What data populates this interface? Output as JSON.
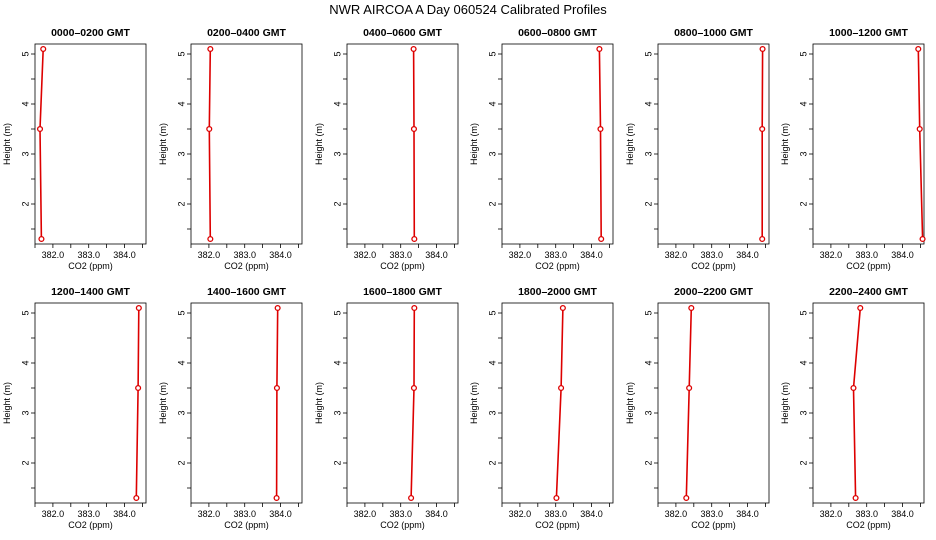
{
  "figure": {
    "title": "NWR AIRCOA A  Day 060524  Calibrated Profiles"
  },
  "colors": {
    "profile": "#dd0000",
    "axis": "#000000",
    "background": "#ffffff"
  },
  "chart_data": [
    {
      "type": "line",
      "title": "0000–0200 GMT",
      "xlabel": "CO2 (ppm)",
      "ylabel": "Height (m)",
      "xlim": [
        381.5,
        384.6
      ],
      "ylim": [
        1.2,
        5.2
      ],
      "xticks": [
        382.0,
        383.0,
        384.0
      ],
      "xtick_labels": [
        "382.0",
        "383.0",
        "384.0"
      ],
      "yticks": [
        2,
        3,
        4,
        5
      ],
      "ytick_labels": [
        "2",
        "3",
        "4",
        "5"
      ],
      "series": [
        {
          "x": [
            381.68,
            381.64,
            381.73
          ],
          "y": [
            1.3,
            3.5,
            5.1
          ]
        }
      ]
    },
    {
      "type": "line",
      "title": "0200–0400 GMT",
      "xlabel": "CO2 (ppm)",
      "ylabel": "Height (m)",
      "xlim": [
        381.5,
        384.6
      ],
      "ylim": [
        1.2,
        5.2
      ],
      "xticks": [
        382.0,
        383.0,
        384.0
      ],
      "xtick_labels": [
        "382.0",
        "383.0",
        "384.0"
      ],
      "yticks": [
        2,
        3,
        4,
        5
      ],
      "ytick_labels": [
        "2",
        "3",
        "4",
        "5"
      ],
      "series": [
        {
          "x": [
            382.04,
            382.01,
            382.04
          ],
          "y": [
            1.3,
            3.5,
            5.1
          ]
        }
      ]
    },
    {
      "type": "line",
      "title": "0400–0600 GMT",
      "xlabel": "CO2 (ppm)",
      "ylabel": "Height (m)",
      "xlim": [
        381.5,
        384.6
      ],
      "ylim": [
        1.2,
        5.2
      ],
      "xticks": [
        382.0,
        383.0,
        384.0
      ],
      "xtick_labels": [
        "382.0",
        "383.0",
        "384.0"
      ],
      "yticks": [
        2,
        3,
        4,
        5
      ],
      "ytick_labels": [
        "2",
        "3",
        "4",
        "5"
      ],
      "series": [
        {
          "x": [
            383.38,
            383.37,
            383.36
          ],
          "y": [
            1.3,
            3.5,
            5.1
          ]
        }
      ]
    },
    {
      "type": "line",
      "title": "0600–0800 GMT",
      "xlabel": "CO2 (ppm)",
      "ylabel": "Height (m)",
      "xlim": [
        381.5,
        384.6
      ],
      "ylim": [
        1.2,
        5.2
      ],
      "xticks": [
        382.0,
        383.0,
        384.0
      ],
      "xtick_labels": [
        "382.0",
        "383.0",
        "384.0"
      ],
      "yticks": [
        2,
        3,
        4,
        5
      ],
      "ytick_labels": [
        "2",
        "3",
        "4",
        "5"
      ],
      "series": [
        {
          "x": [
            384.27,
            384.25,
            384.22
          ],
          "y": [
            1.3,
            3.5,
            5.1
          ]
        }
      ]
    },
    {
      "type": "line",
      "title": "0800–1000 GMT",
      "xlabel": "CO2 (ppm)",
      "ylabel": "Height (m)",
      "xlim": [
        381.5,
        384.6
      ],
      "ylim": [
        1.2,
        5.2
      ],
      "xticks": [
        382.0,
        383.0,
        384.0
      ],
      "xtick_labels": [
        "382.0",
        "383.0",
        "384.0"
      ],
      "yticks": [
        2,
        3,
        4,
        5
      ],
      "ytick_labels": [
        "2",
        "3",
        "4",
        "5"
      ],
      "series": [
        {
          "x": [
            384.41,
            384.41,
            384.42
          ],
          "y": [
            1.3,
            3.5,
            5.1
          ]
        }
      ]
    },
    {
      "type": "line",
      "title": "1000–1200 GMT",
      "xlabel": "CO2 (ppm)",
      "ylabel": "Height (m)",
      "xlim": [
        381.5,
        384.6
      ],
      "ylim": [
        1.2,
        5.2
      ],
      "xticks": [
        382.0,
        383.0,
        384.0
      ],
      "xtick_labels": [
        "382.0",
        "383.0",
        "384.0"
      ],
      "yticks": [
        2,
        3,
        4,
        5
      ],
      "ytick_labels": [
        "2",
        "3",
        "4",
        "5"
      ],
      "series": [
        {
          "x": [
            384.56,
            384.48,
            384.44
          ],
          "y": [
            1.3,
            3.5,
            5.1
          ]
        }
      ]
    },
    {
      "type": "line",
      "title": "1200–1400 GMT",
      "xlabel": "CO2 (ppm)",
      "ylabel": "Height (m)",
      "xlim": [
        381.5,
        384.6
      ],
      "ylim": [
        1.2,
        5.2
      ],
      "xticks": [
        382.0,
        383.0,
        384.0
      ],
      "xtick_labels": [
        "382.0",
        "383.0",
        "384.0"
      ],
      "yticks": [
        2,
        3,
        4,
        5
      ],
      "ytick_labels": [
        "2",
        "3",
        "4",
        "5"
      ],
      "series": [
        {
          "x": [
            384.33,
            384.38,
            384.4
          ],
          "y": [
            1.3,
            3.5,
            5.1
          ]
        }
      ]
    },
    {
      "type": "line",
      "title": "1400–1600 GMT",
      "xlabel": "CO2 (ppm)",
      "ylabel": "Height (m)",
      "xlim": [
        381.5,
        384.6
      ],
      "ylim": [
        1.2,
        5.2
      ],
      "xticks": [
        382.0,
        383.0,
        384.0
      ],
      "xtick_labels": [
        "382.0",
        "383.0",
        "384.0"
      ],
      "yticks": [
        2,
        3,
        4,
        5
      ],
      "ytick_labels": [
        "2",
        "3",
        "4",
        "5"
      ],
      "series": [
        {
          "x": [
            383.89,
            383.9,
            383.92
          ],
          "y": [
            1.3,
            3.5,
            5.1
          ]
        }
      ]
    },
    {
      "type": "line",
      "title": "1600–1800 GMT",
      "xlabel": "CO2 (ppm)",
      "ylabel": "Height (m)",
      "xlim": [
        381.5,
        384.6
      ],
      "ylim": [
        1.2,
        5.2
      ],
      "xticks": [
        382.0,
        383.0,
        384.0
      ],
      "xtick_labels": [
        "382.0",
        "383.0",
        "384.0"
      ],
      "yticks": [
        2,
        3,
        4,
        5
      ],
      "ytick_labels": [
        "2",
        "3",
        "4",
        "5"
      ],
      "series": [
        {
          "x": [
            383.29,
            383.37,
            383.38
          ],
          "y": [
            1.3,
            3.5,
            5.1
          ]
        }
      ]
    },
    {
      "type": "line",
      "title": "1800–2000 GMT",
      "xlabel": "CO2 (ppm)",
      "ylabel": "Height (m)",
      "xlim": [
        381.5,
        384.6
      ],
      "ylim": [
        1.2,
        5.2
      ],
      "xticks": [
        382.0,
        383.0,
        384.0
      ],
      "xtick_labels": [
        "382.0",
        "383.0",
        "384.0"
      ],
      "yticks": [
        2,
        3,
        4,
        5
      ],
      "ytick_labels": [
        "2",
        "3",
        "4",
        "5"
      ],
      "series": [
        {
          "x": [
            383.02,
            383.15,
            383.2
          ],
          "y": [
            1.3,
            3.5,
            5.1
          ]
        }
      ]
    },
    {
      "type": "line",
      "title": "2000–2200 GMT",
      "xlabel": "CO2 (ppm)",
      "ylabel": "Height (m)",
      "xlim": [
        381.5,
        384.6
      ],
      "ylim": [
        1.2,
        5.2
      ],
      "xticks": [
        382.0,
        383.0,
        384.0
      ],
      "xtick_labels": [
        "382.0",
        "383.0",
        "384.0"
      ],
      "yticks": [
        2,
        3,
        4,
        5
      ],
      "ytick_labels": [
        "2",
        "3",
        "4",
        "5"
      ],
      "series": [
        {
          "x": [
            382.29,
            382.37,
            382.43
          ],
          "y": [
            1.3,
            3.5,
            5.1
          ]
        }
      ]
    },
    {
      "type": "line",
      "title": "2200–2400 GMT",
      "xlabel": "CO2 (ppm)",
      "ylabel": "Height (m)",
      "xlim": [
        381.5,
        384.6
      ],
      "ylim": [
        1.2,
        5.2
      ],
      "xticks": [
        382.0,
        383.0,
        384.0
      ],
      "xtick_labels": [
        "382.0",
        "383.0",
        "384.0"
      ],
      "yticks": [
        2,
        3,
        4,
        5
      ],
      "ytick_labels": [
        "2",
        "3",
        "4",
        "5"
      ],
      "series": [
        {
          "x": [
            382.69,
            382.63,
            382.82
          ],
          "y": [
            1.3,
            3.5,
            5.1
          ]
        }
      ]
    }
  ]
}
